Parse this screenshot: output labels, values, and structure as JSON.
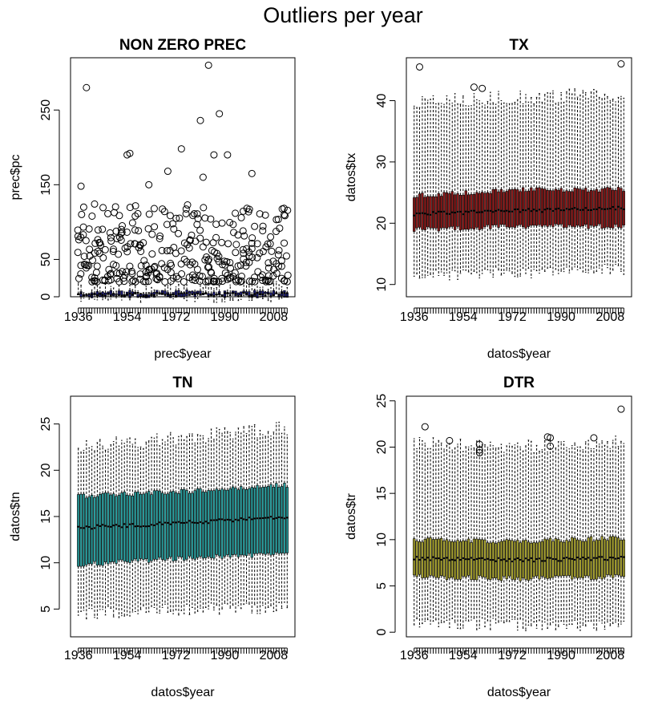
{
  "figure": {
    "title": "Outliers per year"
  },
  "chart_data": [
    {
      "type": "boxplot",
      "title": "NON ZERO PREC",
      "xlabel": "prec$year",
      "ylabel": "prec$pc",
      "color": "#1a1a70",
      "years": [
        1936,
        2013
      ],
      "xtick_labels": [
        "1936",
        "1954",
        "1972",
        "1990",
        "2008"
      ],
      "yticks": [
        0,
        50,
        150,
        250
      ],
      "ylim": [
        0,
        320
      ],
      "stats": {
        "q1": [
          1.5,
          1.5,
          1.5
        ],
        "median": [
          3,
          3,
          3
        ],
        "q3": [
          5,
          6,
          6
        ],
        "whisker_high": [
          9,
          10,
          12
        ],
        "whisker_low": [
          0.1,
          0.1,
          0.1
        ]
      },
      "outlier_range": [
        20,
        125
      ],
      "extreme_outliers": [
        {
          "year": 1937,
          "value": 148
        },
        {
          "year": 1939,
          "value": 280
        },
        {
          "year": 1954,
          "value": 190
        },
        {
          "year": 1955,
          "value": 192
        },
        {
          "year": 1974,
          "value": 198
        },
        {
          "year": 1981,
          "value": 236
        },
        {
          "year": 1984,
          "value": 310
        },
        {
          "year": 1986,
          "value": 190
        },
        {
          "year": 1988,
          "value": 245
        },
        {
          "year": 1991,
          "value": 190
        },
        {
          "year": 1962,
          "value": 150
        },
        {
          "year": 1969,
          "value": 168
        },
        {
          "year": 1982,
          "value": 160
        },
        {
          "year": 2000,
          "value": 165
        }
      ]
    },
    {
      "type": "boxplot",
      "title": "TX",
      "xlabel": "datos$year",
      "ylabel": "datos$tx",
      "color": "#8b1a1a",
      "years": [
        1936,
        2013
      ],
      "xtick_labels": [
        "1936",
        "1954",
        "1972",
        "1990",
        "2008"
      ],
      "yticks": [
        10,
        20,
        30,
        40
      ],
      "ylim": [
        8,
        47
      ],
      "stats": {
        "q1": [
          19.0,
          19.5,
          19.5
        ],
        "median": [
          21.5,
          22.0,
          22.5
        ],
        "q3": [
          24.5,
          25.5,
          25.5
        ],
        "whisker_high": [
          40,
          40.5,
          41
        ],
        "whisker_low": [
          11.5,
          12.0,
          12.5
        ]
      },
      "extreme_outliers": [
        {
          "year": 1938,
          "value": 45.5
        },
        {
          "year": 1958,
          "value": 42.2
        },
        {
          "year": 1961,
          "value": 42.0
        },
        {
          "year": 2012,
          "value": 46.0
        }
      ]
    },
    {
      "type": "boxplot",
      "title": "TN",
      "xlabel": "datos$year",
      "ylabel": "datos$tn",
      "color": "#2a9d9d",
      "years": [
        1936,
        2013
      ],
      "xtick_labels": [
        "1936",
        "1954",
        "1972",
        "1990",
        "2008"
      ],
      "yticks": [
        5,
        10,
        15,
        20,
        25
      ],
      "ylim": [
        2,
        28
      ],
      "stats": {
        "q1": [
          9.8,
          10.5,
          11.0
        ],
        "median": [
          13.8,
          14.3,
          15.0
        ],
        "q3": [
          17.2,
          17.7,
          18.4
        ],
        "whisker_high": [
          22.5,
          23.5,
          24.5
        ],
        "whisker_low": [
          4.5,
          5.0,
          5.2
        ]
      },
      "extreme_outliers": []
    },
    {
      "type": "boxplot",
      "title": "DTR",
      "xlabel": "datos$year",
      "ylabel": "datos$tr",
      "color": "#a5a030",
      "years": [
        1936,
        2013
      ],
      "xtick_labels": [
        "1936",
        "1954",
        "1972",
        "1990",
        "2008"
      ],
      "yticks": [
        0,
        5,
        10,
        15,
        20,
        25
      ],
      "ylim": [
        -0.5,
        25.5
      ],
      "stats": {
        "q1": [
          6.0,
          5.8,
          6.0
        ],
        "median": [
          8.0,
          7.8,
          8.0
        ],
        "q3": [
          10.0,
          9.8,
          10.2
        ],
        "whisker_high": [
          20.5,
          20.0,
          20.5
        ],
        "whisker_low": [
          1.0,
          0.8,
          0.8
        ]
      },
      "extreme_outliers": [
        {
          "year": 1940,
          "value": 22.2
        },
        {
          "year": 1949,
          "value": 20.7
        },
        {
          "year": 1960,
          "value": 20.3
        },
        {
          "year": 1960,
          "value": 19.7
        },
        {
          "year": 1960,
          "value": 19.4
        },
        {
          "year": 1985,
          "value": 21.1
        },
        {
          "year": 1986,
          "value": 21.0
        },
        {
          "year": 1986,
          "value": 20.1
        },
        {
          "year": 2002,
          "value": 21.0
        },
        {
          "year": 2012,
          "value": 24.1
        }
      ]
    }
  ]
}
